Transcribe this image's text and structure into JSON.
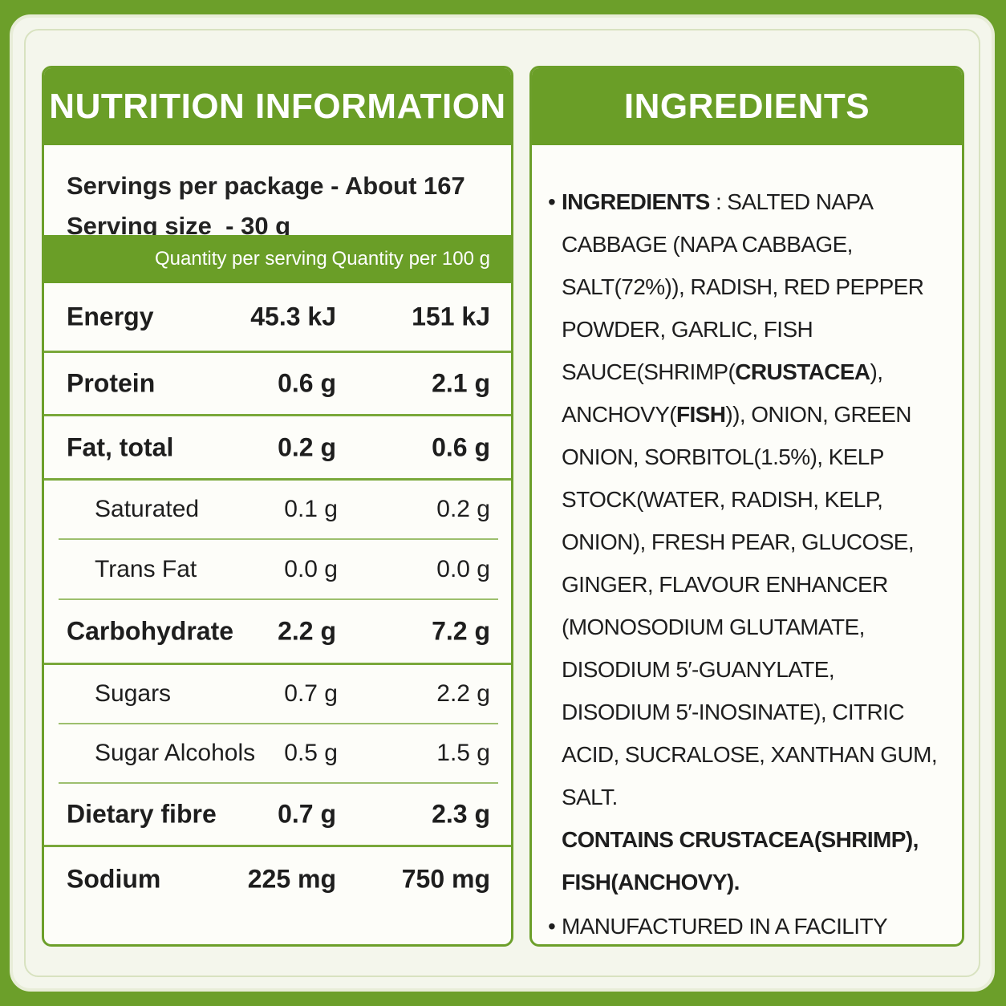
{
  "nutrition": {
    "title": "NUTRITION INFORMATION",
    "servings": "Servings per package - About 167",
    "serving_size": "Serving size  - 30 g",
    "headers": [
      "Quantity per serving",
      "Quantity per 100 g"
    ],
    "rows": [
      {
        "name": "Energy",
        "per_serving": "45.3 kJ",
        "per_100g": "151 kJ",
        "sub": false
      },
      {
        "name": "Protein",
        "per_serving": "0.6 g",
        "per_100g": "2.1 g",
        "sub": false
      },
      {
        "name": "Fat, total",
        "per_serving": "0.2 g",
        "per_100g": "0.6 g",
        "sub": false
      },
      {
        "name": "Saturated",
        "per_serving": "0.1 g",
        "per_100g": "0.2 g",
        "sub": true
      },
      {
        "name": "Trans Fat",
        "per_serving": "0.0 g",
        "per_100g": "0.0 g",
        "sub": true
      },
      {
        "name": "Carbohydrate",
        "per_serving": "2.2 g",
        "per_100g": "7.2 g",
        "sub": false
      },
      {
        "name": "Sugars",
        "per_serving": "0.7 g",
        "per_100g": "2.2 g",
        "sub": true
      },
      {
        "name": "Sugar Alcohols",
        "per_serving": "0.5 g",
        "per_100g": "1.5 g",
        "sub": true
      },
      {
        "name": "Dietary fibre",
        "per_serving": "0.7 g",
        "per_100g": "2.3 g",
        "sub": false
      },
      {
        "name": "Sodium",
        "per_serving": "225 mg",
        "per_100g": "750 mg",
        "sub": false
      }
    ]
  },
  "ingredients": {
    "title": "INGREDIENTS",
    "items": [
      [
        {
          "text": "INGREDIENTS",
          "bold": true
        },
        {
          "text": " : SALTED NAPA CABBAGE (NAPA CABBAGE, SALT(72%)), RADISH, RED PEPPER POWDER, GARLIC, FISH SAUCE(SHRIMP(",
          "bold": false
        },
        {
          "text": "CRUSTACEA",
          "bold": true
        },
        {
          "text": "), ANCHOVY(",
          "bold": false
        },
        {
          "text": "FISH",
          "bold": true
        },
        {
          "text": ")), ONION, GREEN ONION, SORBITOL(1.5%), KELP STOCK(WATER, RADISH, KELP, ONION), FRESH PEAR, GLUCOSE, GINGER, FLAVOUR ENHANCER (MONOSODIUM GLUTAMATE, DISODIUM 5′-GUANYLATE, DISODIUM 5′-INOSINATE), CITRIC ACID, SUCRALOSE, XANTHAN GUM, SALT.",
          "bold": false
        },
        {
          "text": "CONTAINS CRUSTACEA(SHRIMP), FISH(ANCHOVY).",
          "bold": true
        }
      ],
      [
        {
          "text": "MANUFACTURED IN A FACILITY THAT ALSO PROCESSES MUSTARD, CRUSTACEAN, SHELLFISH, SESAME.",
          "bold": false
        }
      ]
    ]
  }
}
